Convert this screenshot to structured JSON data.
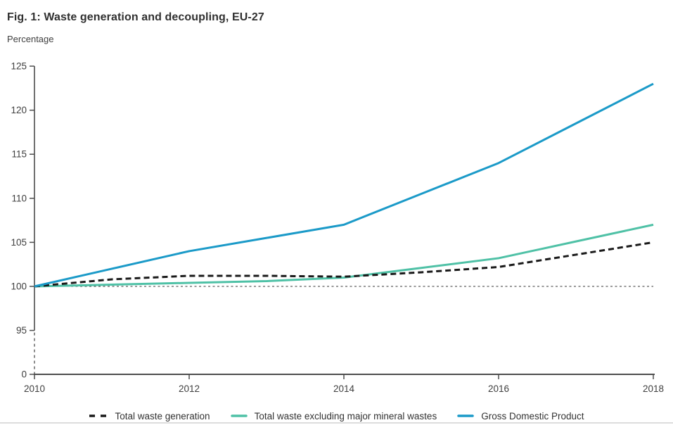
{
  "figure": {
    "title": "Fig. 1: Waste generation and decoupling, EU-27",
    "unit_label": "Percentage"
  },
  "chart_data": {
    "type": "line",
    "title": "Fig. 1: Waste generation and decoupling, EU-27",
    "xlabel": "",
    "ylabel": "Percentage",
    "x": [
      2010,
      2011,
      2012,
      2013,
      2014,
      2015,
      2016,
      2017,
      2018
    ],
    "x_ticks": [
      2010,
      2012,
      2014,
      2016,
      2018
    ],
    "y_ticks": [
      125,
      120,
      115,
      110,
      105,
      100,
      95,
      0
    ],
    "ylim": [
      95,
      125
    ],
    "y_axis_break": true,
    "reference_line": 100,
    "grid": false,
    "legend_position": "bottom",
    "series": [
      {
        "name": "Total waste generation",
        "color": "#1a1a1a",
        "dash": "8 5",
        "values": [
          100,
          100.8,
          101.2,
          101.2,
          101.1,
          101.6,
          102.2,
          103.6,
          105
        ]
      },
      {
        "name": "Total waste excluding major mineral wastes",
        "color": "#4fc1a6",
        "dash": null,
        "values": [
          100,
          100.2,
          100.4,
          100.6,
          101,
          102.1,
          103.2,
          105.1,
          107
        ]
      },
      {
        "name": "Gross Domestic Product",
        "color": "#1b9ac8",
        "dash": null,
        "values": [
          100,
          102,
          104,
          105.5,
          107,
          110.5,
          114,
          118.5,
          123
        ]
      }
    ],
    "colors": {
      "axis": "#4d4d4d",
      "tick_label": "#404040",
      "reference_line": "#333333",
      "title": "#303030",
      "divider": "#dcdcdc"
    }
  }
}
